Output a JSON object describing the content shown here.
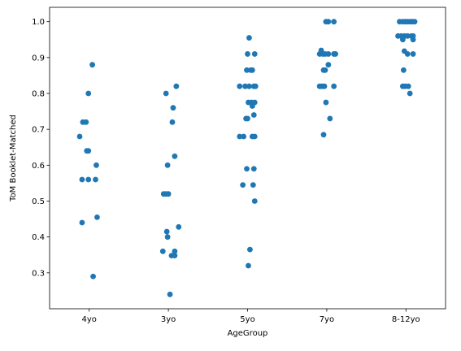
{
  "chart_data": {
    "type": "scatter",
    "xlabel": "AgeGroup",
    "ylabel": "ToM Booklet-Matched",
    "categories": [
      "4yo",
      "3yo",
      "5yo",
      "7yo",
      "8-12yo"
    ],
    "ylim": [
      0.2,
      1.04
    ],
    "yticks": [
      "0.3",
      "0.4",
      "0.5",
      "0.6",
      "0.7",
      "0.8",
      "0.9",
      "1.0"
    ],
    "grid": false,
    "point_color": "#1f77b4",
    "points": [
      {
        "category": "4yo",
        "jitter": 0.04,
        "y": 0.88
      },
      {
        "category": "4yo",
        "jitter": -0.01,
        "y": 0.8
      },
      {
        "category": "4yo",
        "jitter": -0.08,
        "y": 0.72
      },
      {
        "category": "4yo",
        "jitter": -0.04,
        "y": 0.72
      },
      {
        "category": "4yo",
        "jitter": -0.12,
        "y": 0.68
      },
      {
        "category": "4yo",
        "jitter": -0.03,
        "y": 0.64
      },
      {
        "category": "4yo",
        "jitter": -0.01,
        "y": 0.64
      },
      {
        "category": "4yo",
        "jitter": 0.09,
        "y": 0.6
      },
      {
        "category": "4yo",
        "jitter": -0.09,
        "y": 0.56
      },
      {
        "category": "4yo",
        "jitter": -0.01,
        "y": 0.56
      },
      {
        "category": "4yo",
        "jitter": 0.08,
        "y": 0.56
      },
      {
        "category": "4yo",
        "jitter": 0.1,
        "y": 0.455
      },
      {
        "category": "4yo",
        "jitter": -0.09,
        "y": 0.44
      },
      {
        "category": "4yo",
        "jitter": 0.05,
        "y": 0.29
      },
      {
        "category": "3yo",
        "jitter": 0.1,
        "y": 0.82
      },
      {
        "category": "3yo",
        "jitter": -0.03,
        "y": 0.8
      },
      {
        "category": "3yo",
        "jitter": 0.06,
        "y": 0.76
      },
      {
        "category": "3yo",
        "jitter": 0.05,
        "y": 0.72
      },
      {
        "category": "3yo",
        "jitter": 0.08,
        "y": 0.625
      },
      {
        "category": "3yo",
        "jitter": -0.01,
        "y": 0.6
      },
      {
        "category": "3yo",
        "jitter": -0.06,
        "y": 0.52
      },
      {
        "category": "3yo",
        "jitter": -0.03,
        "y": 0.52
      },
      {
        "category": "3yo",
        "jitter": 0.0,
        "y": 0.52
      },
      {
        "category": "3yo",
        "jitter": 0.13,
        "y": 0.428
      },
      {
        "category": "3yo",
        "jitter": -0.02,
        "y": 0.415
      },
      {
        "category": "3yo",
        "jitter": -0.01,
        "y": 0.4
      },
      {
        "category": "3yo",
        "jitter": -0.07,
        "y": 0.36
      },
      {
        "category": "3yo",
        "jitter": 0.08,
        "y": 0.36
      },
      {
        "category": "3yo",
        "jitter": 0.04,
        "y": 0.348
      },
      {
        "category": "3yo",
        "jitter": 0.08,
        "y": 0.348
      },
      {
        "category": "3yo",
        "jitter": 0.02,
        "y": 0.24
      },
      {
        "category": "5yo",
        "jitter": 0.02,
        "y": 0.955
      },
      {
        "category": "5yo",
        "jitter": 0.0,
        "y": 0.91
      },
      {
        "category": "5yo",
        "jitter": 0.09,
        "y": 0.91
      },
      {
        "category": "5yo",
        "jitter": -0.01,
        "y": 0.865
      },
      {
        "category": "5yo",
        "jitter": 0.04,
        "y": 0.865
      },
      {
        "category": "5yo",
        "jitter": 0.06,
        "y": 0.865
      },
      {
        "category": "5yo",
        "jitter": -0.1,
        "y": 0.82
      },
      {
        "category": "5yo",
        "jitter": -0.03,
        "y": 0.82
      },
      {
        "category": "5yo",
        "jitter": 0.02,
        "y": 0.82
      },
      {
        "category": "5yo",
        "jitter": 0.08,
        "y": 0.82
      },
      {
        "category": "5yo",
        "jitter": 0.1,
        "y": 0.82
      },
      {
        "category": "5yo",
        "jitter": 0.01,
        "y": 0.775
      },
      {
        "category": "5yo",
        "jitter": 0.05,
        "y": 0.775
      },
      {
        "category": "5yo",
        "jitter": 0.09,
        "y": 0.775
      },
      {
        "category": "5yo",
        "jitter": 0.06,
        "y": 0.765
      },
      {
        "category": "5yo",
        "jitter": 0.08,
        "y": 0.74
      },
      {
        "category": "5yo",
        "jitter": -0.02,
        "y": 0.73
      },
      {
        "category": "5yo",
        "jitter": 0.0,
        "y": 0.73
      },
      {
        "category": "5yo",
        "jitter": -0.1,
        "y": 0.68
      },
      {
        "category": "5yo",
        "jitter": -0.05,
        "y": 0.68
      },
      {
        "category": "5yo",
        "jitter": 0.06,
        "y": 0.68
      },
      {
        "category": "5yo",
        "jitter": 0.09,
        "y": 0.68
      },
      {
        "category": "5yo",
        "jitter": -0.01,
        "y": 0.59
      },
      {
        "category": "5yo",
        "jitter": 0.08,
        "y": 0.59
      },
      {
        "category": "5yo",
        "jitter": -0.06,
        "y": 0.545
      },
      {
        "category": "5yo",
        "jitter": 0.07,
        "y": 0.545
      },
      {
        "category": "5yo",
        "jitter": 0.09,
        "y": 0.5
      },
      {
        "category": "5yo",
        "jitter": 0.03,
        "y": 0.365
      },
      {
        "category": "5yo",
        "jitter": 0.01,
        "y": 0.32
      },
      {
        "category": "7yo",
        "jitter": -0.01,
        "y": 1.0
      },
      {
        "category": "7yo",
        "jitter": 0.02,
        "y": 1.0
      },
      {
        "category": "7yo",
        "jitter": 0.09,
        "y": 1.0
      },
      {
        "category": "7yo",
        "jitter": -0.07,
        "y": 0.92
      },
      {
        "category": "7yo",
        "jitter": -0.09,
        "y": 0.91
      },
      {
        "category": "7yo",
        "jitter": -0.05,
        "y": 0.91
      },
      {
        "category": "7yo",
        "jitter": -0.02,
        "y": 0.91
      },
      {
        "category": "7yo",
        "jitter": 0.02,
        "y": 0.91
      },
      {
        "category": "7yo",
        "jitter": 0.09,
        "y": 0.91
      },
      {
        "category": "7yo",
        "jitter": 0.11,
        "y": 0.91
      },
      {
        "category": "7yo",
        "jitter": 0.02,
        "y": 0.88
      },
      {
        "category": "7yo",
        "jitter": -0.04,
        "y": 0.865
      },
      {
        "category": "7yo",
        "jitter": -0.02,
        "y": 0.865
      },
      {
        "category": "7yo",
        "jitter": -0.09,
        "y": 0.82
      },
      {
        "category": "7yo",
        "jitter": -0.06,
        "y": 0.82
      },
      {
        "category": "7yo",
        "jitter": -0.03,
        "y": 0.82
      },
      {
        "category": "7yo",
        "jitter": 0.09,
        "y": 0.82
      },
      {
        "category": "7yo",
        "jitter": -0.01,
        "y": 0.775
      },
      {
        "category": "7yo",
        "jitter": 0.04,
        "y": 0.73
      },
      {
        "category": "7yo",
        "jitter": -0.04,
        "y": 0.685
      },
      {
        "category": "8-12yo",
        "jitter": -0.08,
        "y": 1.0
      },
      {
        "category": "8-12yo",
        "jitter": -0.04,
        "y": 1.0
      },
      {
        "category": "8-12yo",
        "jitter": -0.01,
        "y": 1.0
      },
      {
        "category": "8-12yo",
        "jitter": 0.02,
        "y": 1.0
      },
      {
        "category": "8-12yo",
        "jitter": 0.05,
        "y": 1.0
      },
      {
        "category": "8-12yo",
        "jitter": 0.08,
        "y": 1.0
      },
      {
        "category": "8-12yo",
        "jitter": 0.11,
        "y": 1.0
      },
      {
        "category": "8-12yo",
        "jitter": -0.1,
        "y": 0.96
      },
      {
        "category": "8-12yo",
        "jitter": -0.06,
        "y": 0.96
      },
      {
        "category": "8-12yo",
        "jitter": -0.02,
        "y": 0.96
      },
      {
        "category": "8-12yo",
        "jitter": 0.02,
        "y": 0.96
      },
      {
        "category": "8-12yo",
        "jitter": 0.07,
        "y": 0.96
      },
      {
        "category": "8-12yo",
        "jitter": 0.09,
        "y": 0.96
      },
      {
        "category": "8-12yo",
        "jitter": -0.04,
        "y": 0.95
      },
      {
        "category": "8-12yo",
        "jitter": 0.09,
        "y": 0.95
      },
      {
        "category": "8-12yo",
        "jitter": -0.02,
        "y": 0.918
      },
      {
        "category": "8-12yo",
        "jitter": 0.02,
        "y": 0.91
      },
      {
        "category": "8-12yo",
        "jitter": 0.09,
        "y": 0.91
      },
      {
        "category": "8-12yo",
        "jitter": -0.03,
        "y": 0.865
      },
      {
        "category": "8-12yo",
        "jitter": -0.04,
        "y": 0.82
      },
      {
        "category": "8-12yo",
        "jitter": -0.01,
        "y": 0.82
      },
      {
        "category": "8-12yo",
        "jitter": 0.03,
        "y": 0.82
      },
      {
        "category": "8-12yo",
        "jitter": 0.05,
        "y": 0.8
      }
    ]
  }
}
